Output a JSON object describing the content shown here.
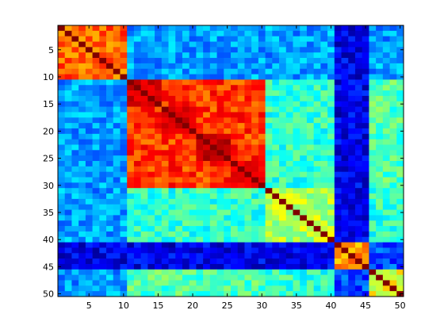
{
  "chart_data": {
    "type": "heatmap",
    "title": "",
    "xlabel": "",
    "ylabel": "",
    "colormap": "jet",
    "color_range": [
      0,
      1
    ],
    "xlim": [
      0.5,
      50.5
    ],
    "ylim": [
      0.5,
      50.5
    ],
    "y_direction": "reverse",
    "grid": false,
    "colorbar": false,
    "rows": 50,
    "cols": 50,
    "xticks": [
      5,
      10,
      15,
      20,
      25,
      30,
      35,
      40,
      45,
      50
    ],
    "yticks": [
      5,
      10,
      15,
      20,
      25,
      30,
      35,
      40,
      45,
      50
    ],
    "xtick_labels": [
      "5",
      "10",
      "15",
      "20",
      "25",
      "30",
      "35",
      "40",
      "45",
      "50"
    ],
    "ytick_labels": [
      "5",
      "10",
      "15",
      "20",
      "25",
      "30",
      "35",
      "40",
      "45",
      "50"
    ],
    "blocks": [
      {
        "index_range": [
          1,
          10
        ],
        "within_value": 0.78,
        "diagonal_value": 1.0
      },
      {
        "index_range": [
          11,
          30
        ],
        "within_value": 0.82,
        "diagonal_value": 1.0
      },
      {
        "index_range": [
          31,
          40
        ],
        "within_value": 0.55,
        "diagonal_value": 1.0
      },
      {
        "index_range": [
          41,
          45
        ],
        "within_value": 0.72,
        "diagonal_value": 1.0
      },
      {
        "index_range": [
          46,
          50
        ],
        "within_value": 0.6,
        "diagonal_value": 1.0
      }
    ],
    "sub_blocks": [
      {
        "index_range": [
          11,
          15
        ],
        "within_value": 0.92
      },
      {
        "index_range": [
          16,
          20
        ],
        "within_value": 0.92
      },
      {
        "index_range": [
          21,
          25
        ],
        "within_value": 0.93
      },
      {
        "index_range": [
          26,
          30
        ],
        "within_value": 0.9
      }
    ],
    "cross_block_values": [
      {
        "rows": [
          1,
          10
        ],
        "cols": [
          11,
          30
        ],
        "value": 0.28
      },
      {
        "rows": [
          1,
          10
        ],
        "cols": [
          31,
          40
        ],
        "value": 0.28
      },
      {
        "rows": [
          1,
          10
        ],
        "cols": [
          41,
          45
        ],
        "value": 0.1
      },
      {
        "rows": [
          1,
          10
        ],
        "cols": [
          46,
          50
        ],
        "value": 0.28
      },
      {
        "rows": [
          11,
          30
        ],
        "cols": [
          31,
          40
        ],
        "value": 0.42
      },
      {
        "rows": [
          11,
          30
        ],
        "cols": [
          41,
          45
        ],
        "value": 0.1
      },
      {
        "rows": [
          11,
          30
        ],
        "cols": [
          46,
          50
        ],
        "value": 0.45
      },
      {
        "rows": [
          31,
          40
        ],
        "cols": [
          41,
          45
        ],
        "value": 0.1
      },
      {
        "rows": [
          31,
          40
        ],
        "cols": [
          46,
          50
        ],
        "value": 0.42
      },
      {
        "rows": [
          41,
          45
        ],
        "cols": [
          46,
          50
        ],
        "value": 0.2
      }
    ],
    "background_value": 0.3
  }
}
